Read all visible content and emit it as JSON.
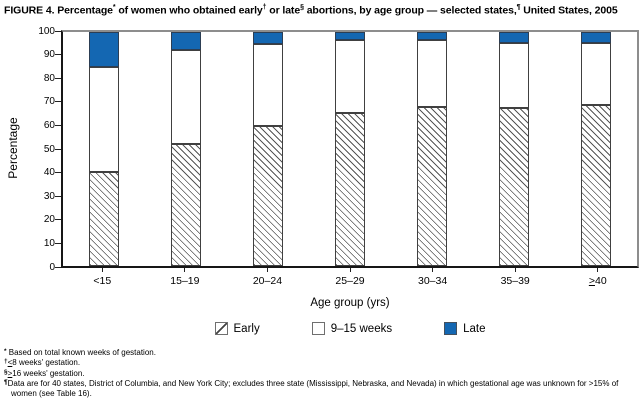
{
  "figure": {
    "title_segments": [
      {
        "t": "FIGURE 4. Percentage"
      },
      {
        "t": "*",
        "sup": true
      },
      {
        "t": " of women who obtained early"
      },
      {
        "t": "†",
        "sup": true
      },
      {
        "t": " or late"
      },
      {
        "t": "§",
        "sup": true
      },
      {
        "t": " abortions, by age group — selected states,"
      },
      {
        "t": "¶",
        "sup": true
      },
      {
        "t": " United States, 2005"
      }
    ]
  },
  "chart_data": {
    "type": "bar",
    "stacked": true,
    "title": "Percentage of women who obtained early or late abortions, by age group — selected states, United States, 2005",
    "categories": [
      "<15",
      "15–19",
      "20–24",
      "25–29",
      "30–34",
      "35–39",
      "≥40"
    ],
    "series": [
      {
        "name": "Early",
        "style": "hatched",
        "values": [
          40,
          52,
          60,
          65.5,
          68,
          67.5,
          69
        ]
      },
      {
        "name": "9–15 weeks",
        "style": "white",
        "values": [
          45,
          40.5,
          35,
          31,
          28.5,
          28,
          26.5
        ]
      },
      {
        "name": "Late",
        "style": "blue",
        "values": [
          15,
          7.5,
          5,
          3.5,
          3.5,
          4.5,
          4.5
        ]
      }
    ],
    "xlabel": "Age group (yrs)",
    "ylabel": "Percentage",
    "ylim": [
      0,
      100
    ],
    "yticks": [
      0,
      10,
      20,
      30,
      40,
      50,
      60,
      70,
      80,
      90,
      100
    ],
    "grid": false,
    "legend_position": "bottom"
  },
  "footnotes": [
    {
      "marker": "*",
      "text": " Based on total known weeks of gestation."
    },
    {
      "marker": "†",
      "text": "≤8 weeks' gestation."
    },
    {
      "marker": "§",
      "text": "≥16 weeks' gestation."
    },
    {
      "marker": "¶",
      "text": "Data are for 40 states, District of Columbia, and New York City; excludes three state (Mississippi, Nebraska, and Nevada) in which gestational age was unknown for >15% of women (see Table 16)."
    }
  ],
  "colors": {
    "late_blue": "#1467b2",
    "bar_border": "#404040",
    "hatch_line": "#565656",
    "axis_dark": "#161616",
    "frame_gray": "#8d8d8d"
  }
}
